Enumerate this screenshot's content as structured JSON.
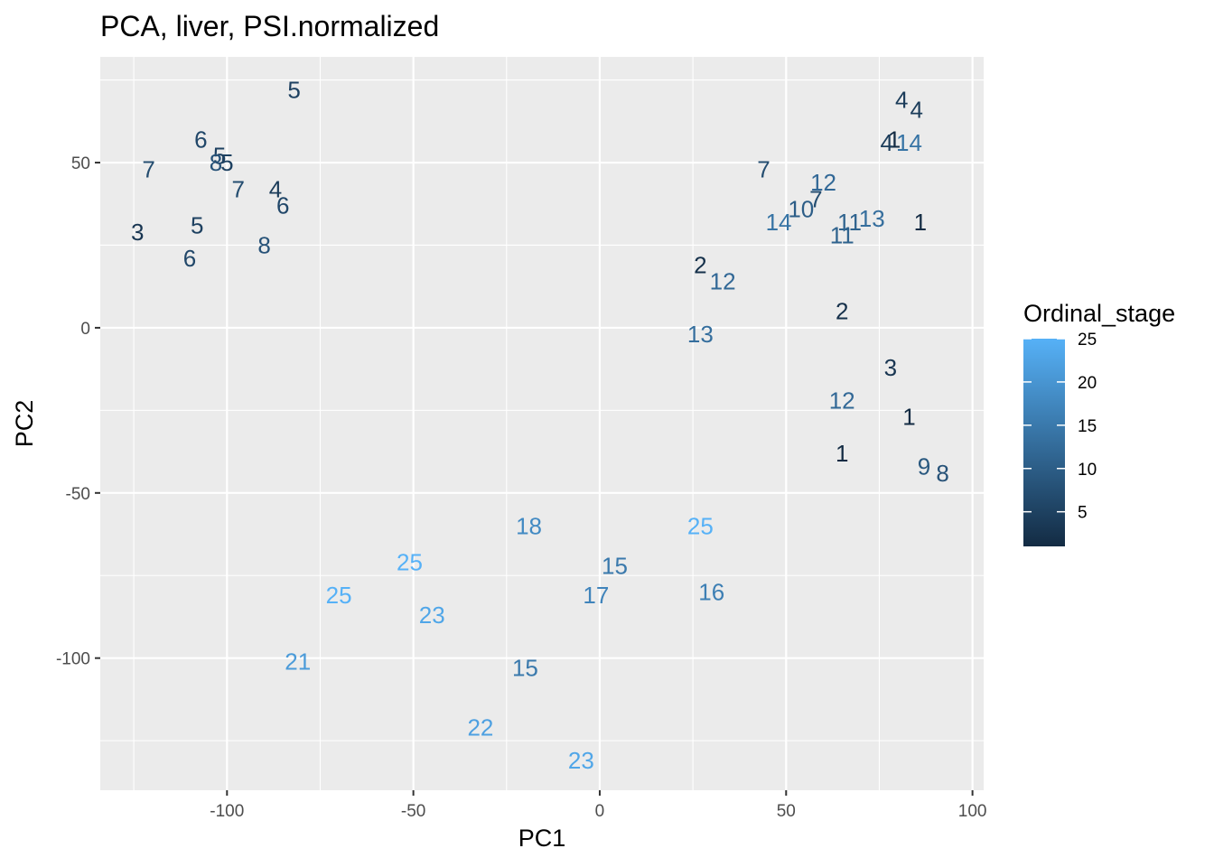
{
  "chart_data": {
    "type": "scatter",
    "title": "PCA, liver, PSI.normalized",
    "xlabel": "PC1",
    "ylabel": "PC2",
    "xlim": [
      -134,
      103
    ],
    "ylim": [
      -140,
      82
    ],
    "x_ticks": [
      -100,
      -50,
      0,
      50,
      100
    ],
    "y_ticks": [
      -100,
      -50,
      0,
      50
    ],
    "x_tick_labels": [
      "-100",
      "-50",
      "0",
      "50",
      "100"
    ],
    "y_tick_labels": [
      "-100",
      "-50",
      "0",
      "50"
    ],
    "grid": true,
    "background": "#ebebeb",
    "legend": {
      "title": "Ordinal_stage",
      "position": "right",
      "range": [
        1,
        25
      ],
      "ticks": [
        5,
        10,
        15,
        20,
        25
      ],
      "tick_labels": [
        "5",
        "10",
        "15",
        "20",
        "25"
      ],
      "color_low": "#132b43",
      "color_high": "#56b1f7"
    },
    "points": [
      {
        "x": -82,
        "y": 72,
        "label": "5",
        "stage": 5
      },
      {
        "x": -107,
        "y": 57,
        "label": "6",
        "stage": 6
      },
      {
        "x": -102,
        "y": 52,
        "label": "5",
        "stage": 5
      },
      {
        "x": -103,
        "y": 50,
        "label": "8",
        "stage": 8
      },
      {
        "x": -100,
        "y": 50,
        "label": "5",
        "stage": 5
      },
      {
        "x": -121,
        "y": 48,
        "label": "7",
        "stage": 7
      },
      {
        "x": -97,
        "y": 42,
        "label": "7",
        "stage": 7
      },
      {
        "x": -87,
        "y": 42,
        "label": "4",
        "stage": 4
      },
      {
        "x": -85,
        "y": 37,
        "label": "6",
        "stage": 6
      },
      {
        "x": -108,
        "y": 31,
        "label": "5",
        "stage": 5
      },
      {
        "x": -124,
        "y": 29,
        "label": "3",
        "stage": 3
      },
      {
        "x": -90,
        "y": 25,
        "label": "8",
        "stage": 8
      },
      {
        "x": -110,
        "y": 21,
        "label": "6",
        "stage": 6
      },
      {
        "x": 81,
        "y": 69,
        "label": "4",
        "stage": 4
      },
      {
        "x": 85,
        "y": 66,
        "label": "4",
        "stage": 4
      },
      {
        "x": 79,
        "y": 57,
        "label": "1",
        "stage": 1
      },
      {
        "x": 77,
        "y": 56,
        "label": "4",
        "stage": 4
      },
      {
        "x": 83,
        "y": 56,
        "label": "14",
        "stage": 14
      },
      {
        "x": 44,
        "y": 48,
        "label": "7",
        "stage": 7
      },
      {
        "x": 60,
        "y": 44,
        "label": "12",
        "stage": 12
      },
      {
        "x": 58,
        "y": 39,
        "label": "7",
        "stage": 7
      },
      {
        "x": 54,
        "y": 36,
        "label": "10",
        "stage": 10
      },
      {
        "x": 48,
        "y": 32,
        "label": "14",
        "stage": 14
      },
      {
        "x": 67,
        "y": 32,
        "label": "11",
        "stage": 11
      },
      {
        "x": 73,
        "y": 33,
        "label": "13",
        "stage": 13
      },
      {
        "x": 86,
        "y": 32,
        "label": "1",
        "stage": 1
      },
      {
        "x": 65,
        "y": 28,
        "label": "11",
        "stage": 11
      },
      {
        "x": 27,
        "y": 19,
        "label": "2",
        "stage": 2
      },
      {
        "x": 33,
        "y": 14,
        "label": "12",
        "stage": 12
      },
      {
        "x": 65,
        "y": 5,
        "label": "2",
        "stage": 2
      },
      {
        "x": 27,
        "y": -2,
        "label": "13",
        "stage": 13
      },
      {
        "x": 78,
        "y": -12,
        "label": "3",
        "stage": 3
      },
      {
        "x": 65,
        "y": -22,
        "label": "12",
        "stage": 12
      },
      {
        "x": 83,
        "y": -27,
        "label": "1",
        "stage": 1
      },
      {
        "x": 65,
        "y": -38,
        "label": "1",
        "stage": 1
      },
      {
        "x": 87,
        "y": -42,
        "label": "9",
        "stage": 9
      },
      {
        "x": 92,
        "y": -44,
        "label": "8",
        "stage": 8
      },
      {
        "x": -19,
        "y": -60,
        "label": "18",
        "stage": 18
      },
      {
        "x": 27,
        "y": -60,
        "label": "25",
        "stage": 25
      },
      {
        "x": -51,
        "y": -71,
        "label": "25",
        "stage": 25
      },
      {
        "x": 4,
        "y": -72,
        "label": "15",
        "stage": 15
      },
      {
        "x": -70,
        "y": -81,
        "label": "25",
        "stage": 25
      },
      {
        "x": -1,
        "y": -81,
        "label": "17",
        "stage": 17
      },
      {
        "x": 30,
        "y": -80,
        "label": "16",
        "stage": 16
      },
      {
        "x": -45,
        "y": -87,
        "label": "23",
        "stage": 23
      },
      {
        "x": -81,
        "y": -101,
        "label": "21",
        "stage": 21
      },
      {
        "x": -20,
        "y": -103,
        "label": "15",
        "stage": 15
      },
      {
        "x": -32,
        "y": -121,
        "label": "22",
        "stage": 22
      },
      {
        "x": -5,
        "y": -131,
        "label": "23",
        "stage": 23
      }
    ]
  }
}
